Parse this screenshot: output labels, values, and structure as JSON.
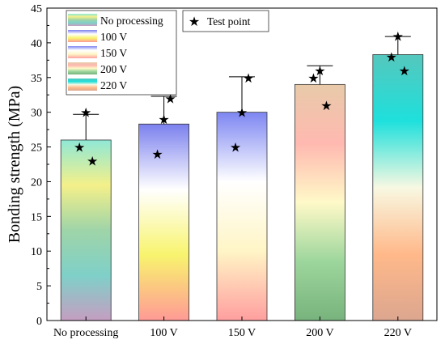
{
  "chart_data": {
    "type": "bar",
    "title": "",
    "xlabel": "",
    "ylabel": "Bonding strength (MPa)",
    "ylim": [
      0,
      45
    ],
    "yticks": [
      0,
      5,
      10,
      15,
      20,
      25,
      30,
      35,
      40,
      45
    ],
    "grid": false,
    "categories": [
      "No processing",
      "100 V",
      "150 V",
      "200 V",
      "220 V"
    ],
    "values": [
      26.0,
      28.3,
      30.0,
      34.0,
      38.3
    ],
    "error_upper": [
      29.7,
      32.3,
      35.1,
      36.7,
      40.9
    ],
    "test_points": [
      [
        30,
        25,
        23
      ],
      [
        29,
        24,
        32
      ],
      [
        30,
        25,
        35
      ],
      [
        36,
        35,
        31
      ],
      [
        41,
        38,
        36
      ]
    ],
    "legend_position": "top-left",
    "legend_labels": [
      "No processing",
      "100 V",
      "150 V",
      "200 V",
      "220 V"
    ],
    "marker_legend_label": "Test point",
    "bar_gradients": [
      [
        "#8fe8d6",
        "#f4f08a",
        "#9fd4a8",
        "#7fd0c8",
        "#c59ec2"
      ],
      [
        "#7b80ee",
        "#ffffff",
        "#f8f46e",
        "#ff9a95"
      ],
      [
        "#7d86f2",
        "#ffffff",
        "#fff5c6",
        "#ff9f9f"
      ],
      [
        "#e8caa9",
        "#ffb9b0",
        "#fff9c8",
        "#9dd69c",
        "#78b37d"
      ],
      [
        "#55c7bd",
        "#1ee0dc",
        "#f8f8e2",
        "#ffb98a",
        "#dca68f"
      ]
    ]
  }
}
